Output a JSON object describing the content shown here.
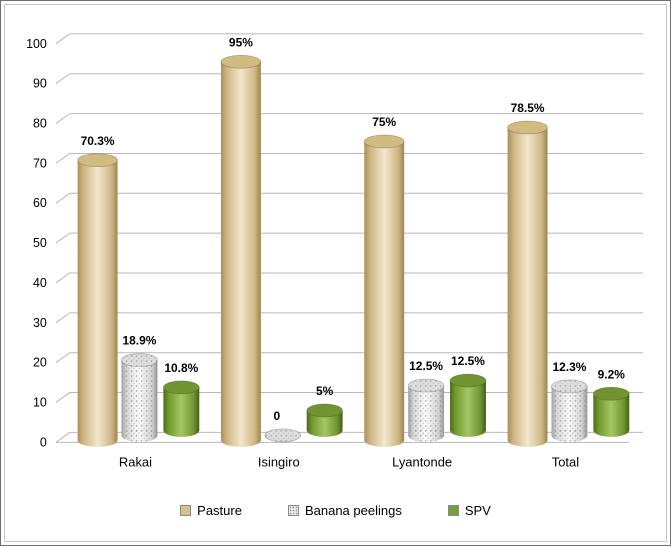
{
  "chart_data": {
    "type": "bar",
    "variant": "3d-cylinder-clustered",
    "title": "",
    "grid": true,
    "background": "#ffffff",
    "gridline_color": "#b8b8b8",
    "categories": [
      "Rakai",
      "Isingiro",
      "Lyantonde",
      "Total"
    ],
    "series": [
      {
        "name": "Pasture",
        "color": "#d8bf8c",
        "values": [
          70.3,
          95,
          75,
          78.5
        ],
        "data_labels": [
          "70.3%",
          "95%",
          "75%",
          "78.5%"
        ]
      },
      {
        "name": "Banana peelings",
        "color": "#ececec",
        "texture": "speckled",
        "values": [
          18.9,
          0,
          12.5,
          12.3
        ],
        "data_labels": [
          "18.9%",
          "0",
          "12.5%",
          "12.3%"
        ]
      },
      {
        "name": "SPV",
        "color": "#77a233",
        "values": [
          10.8,
          5,
          12.5,
          9.2
        ],
        "data_labels": [
          "10.8%",
          "5%",
          "12.5%",
          "9.2%"
        ]
      }
    ],
    "y_axis": {
      "min": 0,
      "max": 100,
      "step": 10,
      "tick_labels": [
        "0",
        "10",
        "20",
        "30",
        "40",
        "50",
        "60",
        "70",
        "80",
        "90",
        "100"
      ]
    },
    "legend": {
      "position": "bottom",
      "items": [
        "Pasture",
        "Banana peelings",
        "SPV"
      ]
    }
  }
}
